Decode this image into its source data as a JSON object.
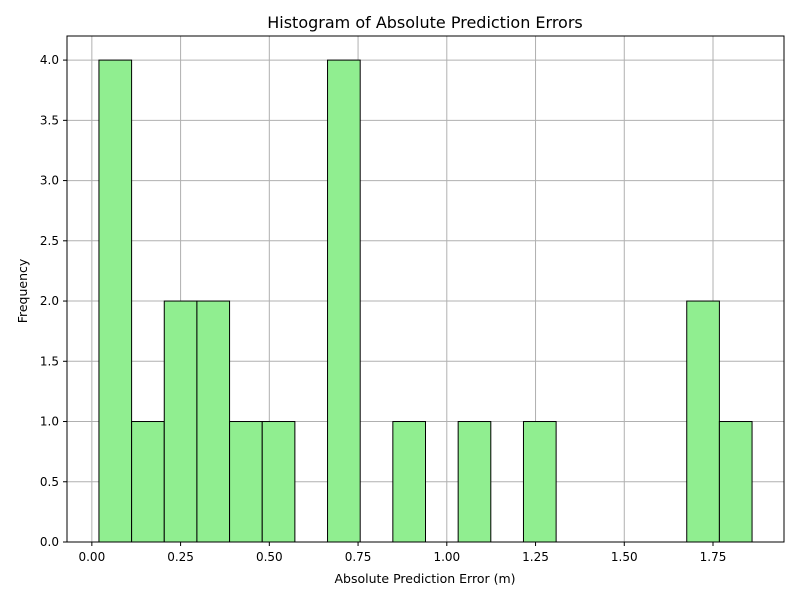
{
  "colors": {
    "bar_fill": "#90ee90",
    "bar_edge": "#000000",
    "grid": "#b0b0b0",
    "axis": "#000000",
    "background": "#ffffff"
  },
  "chart_data": {
    "type": "bar",
    "title": "Histogram of Absolute Prediction Errors",
    "xlabel": "Absolute Prediction Error (m)",
    "ylabel": "Frequency",
    "grid": true,
    "xlim": [
      -0.07,
      1.95
    ],
    "ylim": [
      0,
      4.2
    ],
    "xticks": [
      0.0,
      0.25,
      0.5,
      0.75,
      1.0,
      1.25,
      1.5,
      1.75
    ],
    "xtick_labels": [
      "0.00",
      "0.25",
      "0.50",
      "0.75",
      "1.00",
      "1.25",
      "1.50",
      "1.75"
    ],
    "yticks": [
      0.0,
      0.5,
      1.0,
      1.5,
      2.0,
      2.5,
      3.0,
      3.5,
      4.0
    ],
    "ytick_labels": [
      "0.0",
      "0.5",
      "1.0",
      "1.5",
      "2.0",
      "2.5",
      "3.0",
      "3.5",
      "4.0"
    ],
    "bin_edges": [
      0.02,
      0.112,
      0.204,
      0.296,
      0.388,
      0.48,
      0.572,
      0.664,
      0.756,
      0.848,
      0.94,
      1.032,
      1.124,
      1.216,
      1.308,
      1.4,
      1.492,
      1.584,
      1.676,
      1.768,
      1.86
    ],
    "values": [
      4,
      1,
      2,
      2,
      1,
      1,
      0,
      4,
      0,
      1,
      0,
      1,
      0,
      1,
      0,
      0,
      0,
      0,
      2,
      1
    ]
  }
}
